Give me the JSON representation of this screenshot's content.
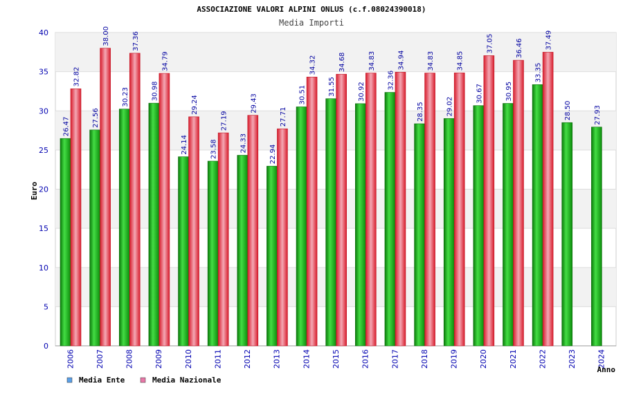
{
  "chart_data": {
    "type": "bar",
    "title": "ASSOCIAZIONE VALORI ALPINI ONLUS (c.f.08024390018)",
    "subtitle": "Media Importi",
    "xlabel": "Anno",
    "ylabel": "Euro",
    "ylim": [
      0,
      40
    ],
    "yticks": [
      0,
      5,
      10,
      15,
      20,
      25,
      30,
      35,
      40
    ],
    "grid": true,
    "legend_position": "bottom-left",
    "categories": [
      "2006",
      "2007",
      "2008",
      "2009",
      "2010",
      "2011",
      "2012",
      "2013",
      "2014",
      "2015",
      "2016",
      "2017",
      "2018",
      "2019",
      "2020",
      "2021",
      "2022",
      "2023",
      "2024"
    ],
    "series": [
      {
        "name": "Media Ente",
        "color": "#1aa81a",
        "legend_color": "#5aa0e8",
        "values": [
          26.47,
          27.56,
          30.23,
          30.98,
          24.14,
          23.58,
          24.33,
          22.94,
          30.51,
          31.55,
          30.92,
          32.36,
          28.35,
          29.02,
          30.67,
          30.95,
          33.35,
          28.5,
          27.93
        ],
        "labels": [
          "26.47",
          "27.56",
          "30.23",
          "30.98",
          "24.14",
          "23.58",
          "24.33",
          "22.94",
          "30.51",
          "31.55",
          "30.92",
          "32.36",
          "28.35",
          "29.02",
          "30.67",
          "30.95",
          "33.35",
          "28.50",
          "27.93"
        ]
      },
      {
        "name": "Media Nazionale",
        "color": "#e8283a",
        "legend_color": "#e878a8",
        "values": [
          32.82,
          38.0,
          37.36,
          34.79,
          29.24,
          27.19,
          29.43,
          27.71,
          34.32,
          34.68,
          34.83,
          34.94,
          34.83,
          34.85,
          37.05,
          36.46,
          37.49,
          null,
          null
        ],
        "labels": [
          "32.82",
          "38.00",
          "37.36",
          "34.79",
          "29.24",
          "27.19",
          "29.43",
          "27.71",
          "34.32",
          "34.68",
          "34.83",
          "34.94",
          "34.83",
          "34.85",
          "37.05",
          "36.46",
          "37.49",
          null,
          null
        ]
      }
    ]
  }
}
